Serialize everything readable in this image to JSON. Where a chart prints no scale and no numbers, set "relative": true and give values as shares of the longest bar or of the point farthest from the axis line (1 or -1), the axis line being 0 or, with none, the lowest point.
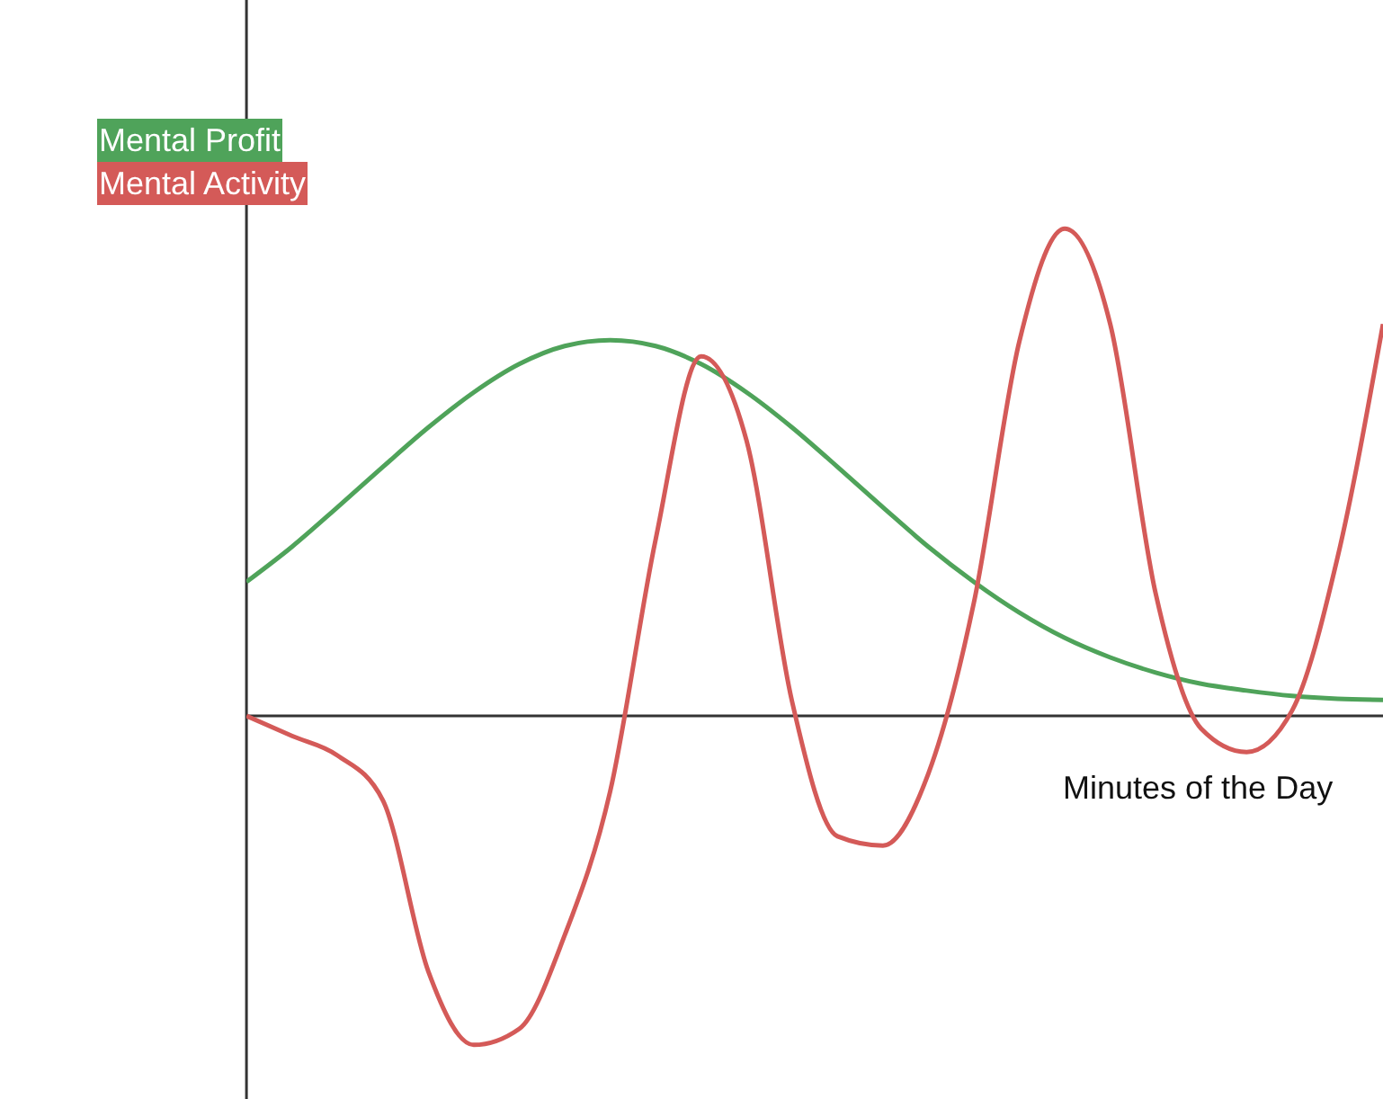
{
  "chart_data": {
    "type": "line",
    "relative": true,
    "xlabel": "Minutes of the Day",
    "legend": "top left",
    "marker": "none",
    "line_style": "solid",
    "grid": false,
    "categories": [
      null,
      null,
      null,
      null,
      null,
      null,
      null,
      null,
      null,
      null,
      null,
      null,
      null,
      null,
      null,
      null,
      null,
      null,
      null,
      null,
      null,
      null,
      null,
      null,
      null,
      null
    ],
    "series": [
      {
        "name": "Mental Profit",
        "color": "#4fa35a",
        "values": [
          0.275,
          0.347,
          0.428,
          0.511,
          0.592,
          0.664,
          0.722,
          0.759,
          0.771,
          0.759,
          0.722,
          0.664,
          0.592,
          0.511,
          0.428,
          0.347,
          0.275,
          0.212,
          0.16,
          0.12,
          0.089,
          0.066,
          0.052,
          0.041,
          0.035,
          0.033
        ]
      },
      {
        "name": "Mental Activity",
        "color": "#d45a58",
        "values": [
          0,
          -0.041,
          -0.081,
          -0.173,
          -0.524,
          -0.675,
          -0.642,
          -0.45,
          -0.155,
          0.362,
          0.738,
          0.565,
          0.03,
          -0.247,
          -0.266,
          -0.118,
          0.232,
          0.768,
          1,
          0.804,
          0.251,
          -0.026,
          -0.074,
          0.011,
          0.325,
          0.804
        ]
      }
    ]
  }
}
